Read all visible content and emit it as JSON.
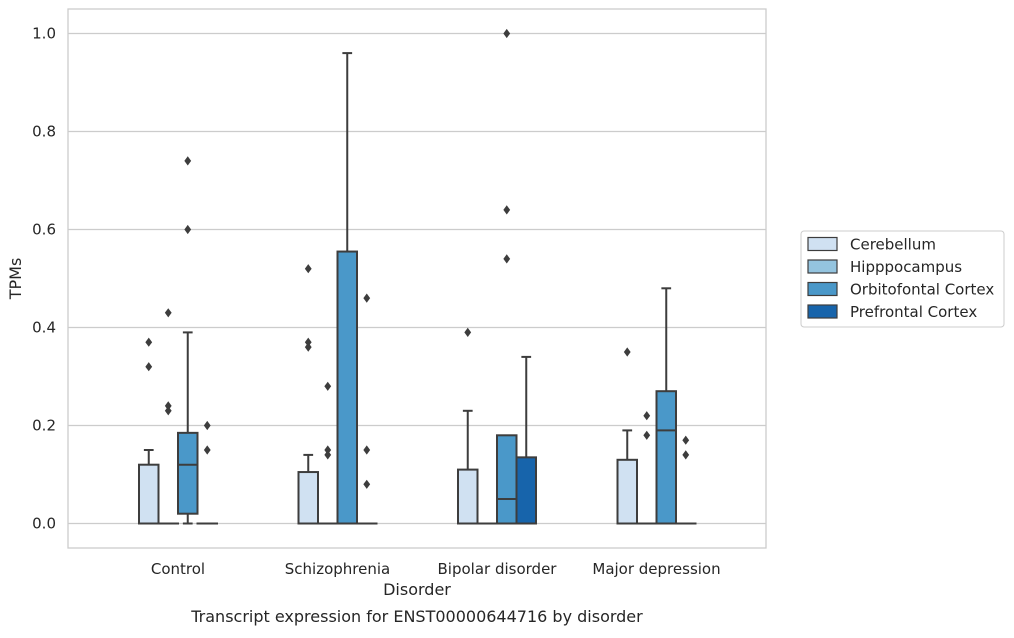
{
  "caption": "Transcript expression for ENST00000644716 by disorder",
  "colors": {
    "Cerebellum": "#d0e1f2",
    "Hipppocampus": "#94c4df",
    "Orbitofontal Cortex": "#4a98c9",
    "Prefrontal Cortex": "#1764ab",
    "box_edge": "#3d3d3d",
    "grid": "#cccccc",
    "frame": "#cccccc"
  },
  "chart_data": {
    "type": "box",
    "xlabel": "Disorder",
    "ylabel": "TPMs",
    "ylim": [
      -0.05,
      1.05
    ],
    "yticks": [
      "0.0",
      "0.2",
      "0.4",
      "0.6",
      "0.8",
      "1.0"
    ],
    "grid": "horizontal",
    "legend_position": "right",
    "categories": [
      "Control",
      "Schizophrenia",
      "Bipolar disorder",
      "Major depression"
    ],
    "series": [
      {
        "name": "Cerebellum",
        "boxes": [
          {
            "q1": 0,
            "median": 0,
            "q3": 0.12,
            "whislo": 0,
            "whishi": 0.15,
            "fliers": [
              0.37,
              0.32
            ]
          },
          {
            "q1": 0,
            "median": 0,
            "q3": 0.105,
            "whislo": 0,
            "whishi": 0.14,
            "fliers": [
              0.52,
              0.37,
              0.36
            ]
          },
          {
            "q1": 0,
            "median": 0,
            "q3": 0.11,
            "whislo": 0,
            "whishi": 0.23,
            "fliers": [
              0.39
            ]
          },
          {
            "q1": 0,
            "median": 0,
            "q3": 0.13,
            "whislo": 0,
            "whishi": 0.19,
            "fliers": [
              0.35
            ]
          }
        ]
      },
      {
        "name": "Hipppocampus",
        "boxes": [
          {
            "q1": 0,
            "median": 0,
            "q3": 0,
            "whislo": 0,
            "whishi": 0,
            "fliers": [
              0.43,
              0.24,
              0.23
            ]
          },
          {
            "q1": 0,
            "median": 0,
            "q3": 0,
            "whislo": 0,
            "whishi": 0,
            "fliers": [
              0.28,
              0.15,
              0.14
            ]
          },
          {
            "q1": 0,
            "median": 0,
            "q3": 0,
            "whislo": 0,
            "whishi": 0,
            "fliers": []
          },
          {
            "q1": 0,
            "median": 0,
            "q3": 0,
            "whislo": 0,
            "whishi": 0,
            "fliers": [
              0.22,
              0.18
            ]
          }
        ]
      },
      {
        "name": "Orbitofontal Cortex",
        "boxes": [
          {
            "q1": 0.02,
            "median": 0.12,
            "q3": 0.185,
            "whislo": 0,
            "whishi": 0.39,
            "fliers": [
              0.74,
              0.6
            ]
          },
          {
            "q1": 0,
            "median": 0,
            "q3": 0.555,
            "whislo": 0,
            "whishi": 0.96,
            "fliers": []
          },
          {
            "q1": 0,
            "median": 0.05,
            "q3": 0.18,
            "whislo": 0,
            "whishi": 0.18,
            "fliers": [
              1.0,
              0.64,
              0.54
            ]
          },
          {
            "q1": 0,
            "median": 0.19,
            "q3": 0.27,
            "whislo": 0,
            "whishi": 0.48,
            "fliers": []
          }
        ]
      },
      {
        "name": "Prefrontal Cortex",
        "boxes": [
          {
            "q1": 0,
            "median": 0,
            "q3": 0,
            "whislo": 0,
            "whishi": 0,
            "fliers": [
              0.2,
              0.15
            ]
          },
          {
            "q1": 0,
            "median": 0,
            "q3": 0,
            "whislo": 0,
            "whishi": 0,
            "fliers": [
              0.46,
              0.15,
              0.08
            ]
          },
          {
            "q1": 0,
            "median": 0,
            "q3": 0.135,
            "whislo": 0,
            "whishi": 0.34,
            "fliers": []
          },
          {
            "q1": 0,
            "median": 0,
            "q3": 0,
            "whislo": 0,
            "whishi": 0,
            "fliers": [
              0.17,
              0.14
            ]
          }
        ]
      }
    ]
  }
}
